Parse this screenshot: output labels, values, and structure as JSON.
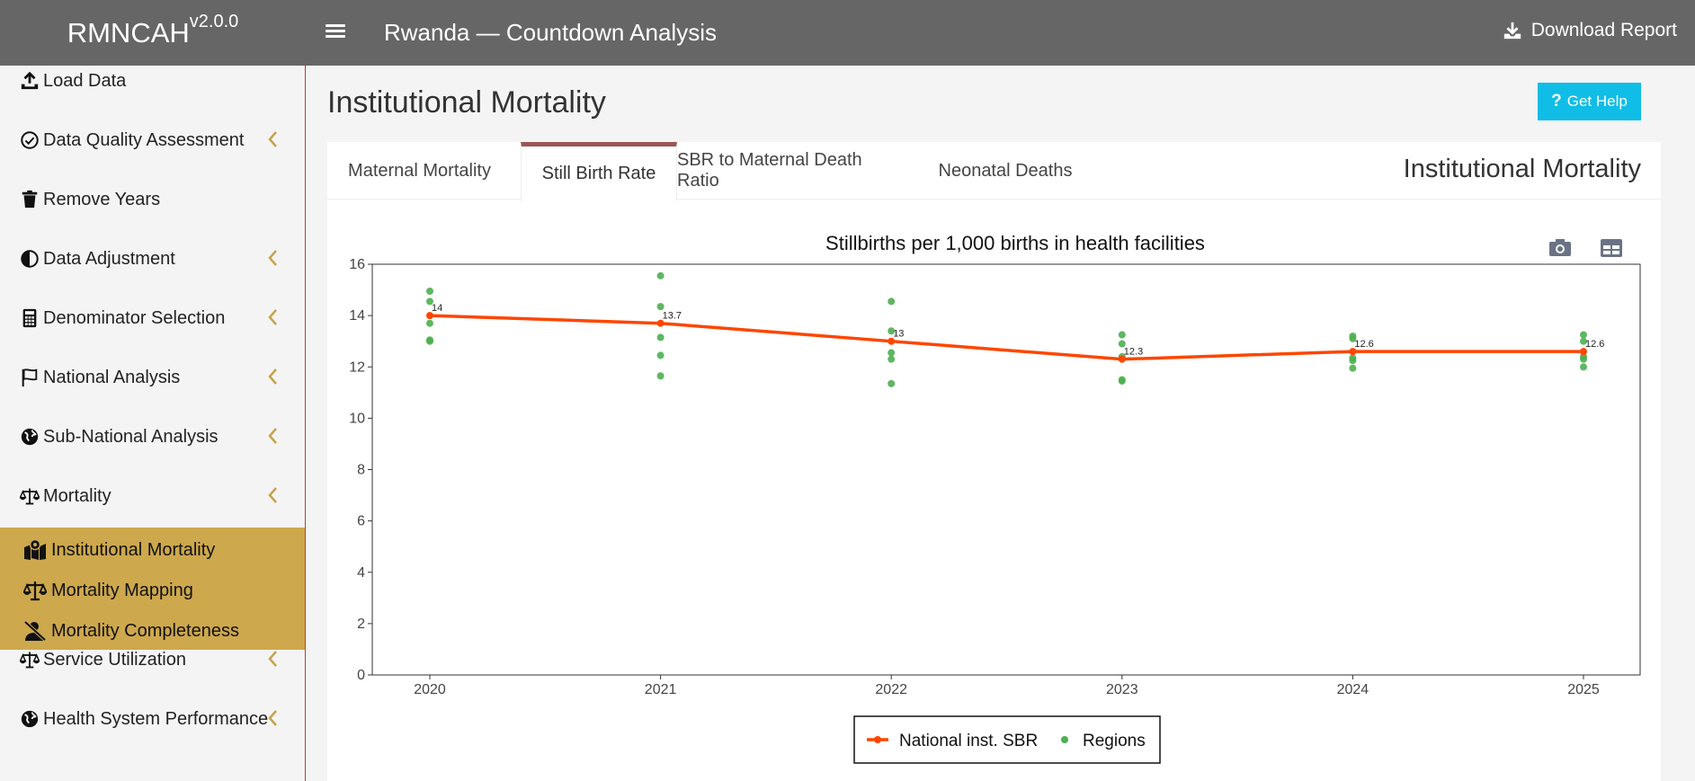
{
  "header": {
    "brand": "RMNCAH",
    "version": "v2.0.0",
    "title": "Rwanda — Countdown Analysis",
    "download_label": "Download Report"
  },
  "sidebar": {
    "items": [
      {
        "label": "Load Data",
        "icon": "upload-icon",
        "has_chevron": false
      },
      {
        "label": "Data Quality Assessment",
        "icon": "check-circle-icon",
        "has_chevron": true
      },
      {
        "label": "Remove Years",
        "icon": "trash-icon",
        "has_chevron": false
      },
      {
        "label": "Data Adjustment",
        "icon": "adjust-icon",
        "has_chevron": true
      },
      {
        "label": "Denominator Selection",
        "icon": "calculator-icon",
        "has_chevron": true
      },
      {
        "label": "National Analysis",
        "icon": "flag-icon",
        "has_chevron": true
      },
      {
        "label": "Sub-National Analysis",
        "icon": "globe-icon",
        "has_chevron": true
      },
      {
        "label": "Mortality",
        "icon": "scale-icon",
        "has_chevron": true
      }
    ],
    "sub_items": [
      {
        "label": "Institutional Mortality",
        "icon": "map-pin-icon"
      },
      {
        "label": "Mortality Mapping",
        "icon": "scale-icon"
      },
      {
        "label": "Mortality Completeness",
        "icon": "user-slash-icon"
      }
    ],
    "bottom_items": [
      {
        "label": "Service Utilization",
        "icon": "scale-icon",
        "has_chevron": true
      },
      {
        "label": "Health System Performance",
        "icon": "globe-icon",
        "has_chevron": true
      }
    ],
    "chevron_color": "#c8a24a",
    "submenu_color": "#cda84d"
  },
  "main": {
    "page_title": "Institutional Mortality",
    "help_label": "Get Help",
    "card_title": "Institutional Mortality",
    "tabs": [
      {
        "label": "Maternal Mortality",
        "active": false
      },
      {
        "label": "Still Birth Rate",
        "active": true
      },
      {
        "label": "SBR to Maternal Death Ratio",
        "active": false
      },
      {
        "label": "Neonatal Deaths",
        "active": false
      }
    ],
    "toolbar": {
      "camera_icon": "camera-icon",
      "table_icon": "table-icon"
    }
  },
  "chart_data": {
    "type": "line",
    "title": "Stillbirths per 1,000 births in health facilities",
    "xlabel": "",
    "ylabel": "",
    "x": [
      "2020",
      "2021",
      "2022",
      "2023",
      "2024",
      "2025"
    ],
    "ylim": [
      0,
      16
    ],
    "yticks": [
      0,
      2,
      4,
      6,
      8,
      10,
      12,
      14,
      16
    ],
    "grid": false,
    "legend_position": "bottom",
    "series": [
      {
        "name": "National inst. SBR",
        "type": "line",
        "color": "#ff4500",
        "values": [
          14,
          13.7,
          13,
          12.3,
          12.6,
          12.6
        ],
        "labels": [
          "14",
          "13.7",
          "13",
          "12.3",
          "12.6",
          "12.6"
        ]
      },
      {
        "name": "Regions",
        "type": "scatter",
        "color": "#4caf50",
        "points": [
          {
            "x": "2020",
            "values": [
              14.95,
              14.55,
              13.7,
              13.05,
              13.0
            ]
          },
          {
            "x": "2021",
            "values": [
              15.55,
              14.35,
              13.15,
              12.45,
              11.65
            ]
          },
          {
            "x": "2022",
            "values": [
              14.55,
              13.4,
              12.55,
              12.3,
              11.35
            ]
          },
          {
            "x": "2023",
            "values": [
              13.25,
              12.9,
              12.4,
              11.5,
              11.45
            ]
          },
          {
            "x": "2024",
            "values": [
              13.2,
              13.1,
              12.35,
              12.25,
              11.95
            ]
          },
          {
            "x": "2025",
            "values": [
              13.25,
              13.0,
              12.4,
              12.3,
              12.0
            ]
          }
        ]
      }
    ]
  }
}
